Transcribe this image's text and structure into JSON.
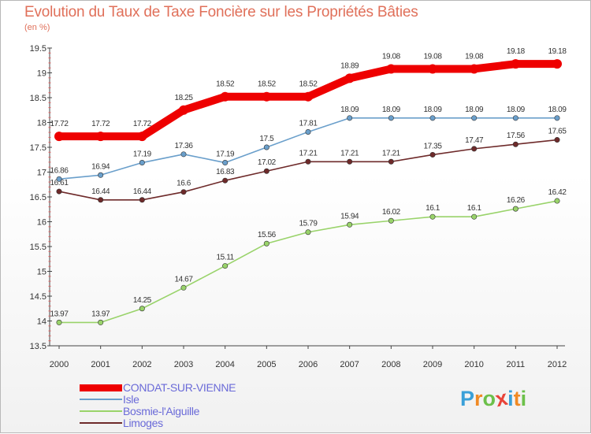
{
  "title": "Evolution du Taux de Taxe Foncière sur les Propriétés Bâties",
  "unit_label": "(en %)",
  "brand": {
    "letters": [
      "P",
      "r",
      "o",
      "x",
      "i",
      "t",
      "i"
    ],
    "colors": [
      "#3aa0d8",
      "#f08a24",
      "#6cc04a",
      "#e8443a",
      "#3aa0d8",
      "#f08a24",
      "#6cc04a"
    ]
  },
  "chart_data": {
    "type": "line",
    "title": "Evolution du Taux de Taxe Foncière sur les Propriétés Bâties",
    "ylabel": "(en %)",
    "xlabel": "",
    "x": [
      "2000",
      "2001",
      "2002",
      "2003",
      "2004",
      "2005",
      "2006",
      "2007",
      "2008",
      "2009",
      "2010",
      "2011",
      "2012"
    ],
    "ylim": [
      13.5,
      19.5
    ],
    "yticks": [
      "13.5",
      "14",
      "14.5",
      "15",
      "15.5",
      "16",
      "16.5",
      "17",
      "17.5",
      "18",
      "18.5",
      "19",
      "19.5"
    ],
    "grid": false,
    "legend_position": "bottom-left",
    "series": [
      {
        "name": "CONDAT-SUR-VIENNE",
        "color": "#ee0000",
        "values": [
          17.72,
          17.72,
          17.72,
          18.25,
          18.52,
          18.52,
          18.52,
          18.89,
          19.08,
          19.08,
          19.08,
          19.18,
          19.18
        ],
        "labels": [
          "17.72",
          "17.72",
          "17.72",
          "18.25",
          "18.52",
          "18.52",
          "18.52",
          "18.89",
          "19.08",
          "19.08",
          "19.08",
          "19.18",
          "19.18"
        ]
      },
      {
        "name": "Isle",
        "color": "#6a9fcb",
        "values": [
          16.86,
          16.94,
          17.19,
          17.36,
          17.19,
          17.5,
          17.81,
          18.09,
          18.09,
          18.09,
          18.09,
          18.09,
          18.09
        ],
        "labels": [
          "16.86",
          "16.94",
          "17.19",
          "17.36",
          "17.19",
          "17.5",
          "17.81",
          "18.09",
          "18.09",
          "18.09",
          "18.09",
          "18.09",
          "18.09"
        ]
      },
      {
        "name": "Bosmie-l'Aiguille",
        "color": "#99d36a",
        "values": [
          13.97,
          13.97,
          14.25,
          14.67,
          15.11,
          15.56,
          15.79,
          15.94,
          16.02,
          16.1,
          16.1,
          16.26,
          16.42
        ],
        "labels": [
          "13.97",
          "13.97",
          "14.25",
          "14.67",
          "15.11",
          "15.56",
          "15.79",
          "15.94",
          "16.02",
          "16.1",
          "16.1",
          "16.26",
          "16.42"
        ]
      },
      {
        "name": "Limoges",
        "color": "#6e2a2a",
        "values": [
          16.61,
          16.44,
          16.44,
          16.6,
          16.83,
          17.02,
          17.21,
          17.21,
          17.21,
          17.35,
          17.47,
          17.56,
          17.65
        ],
        "labels": [
          "16.61",
          "16.44",
          "16.44",
          "16.6",
          "16.83",
          "17.02",
          "17.21",
          "17.21",
          "17.21",
          "17.35",
          "17.47",
          "17.56",
          "17.65"
        ]
      }
    ]
  }
}
